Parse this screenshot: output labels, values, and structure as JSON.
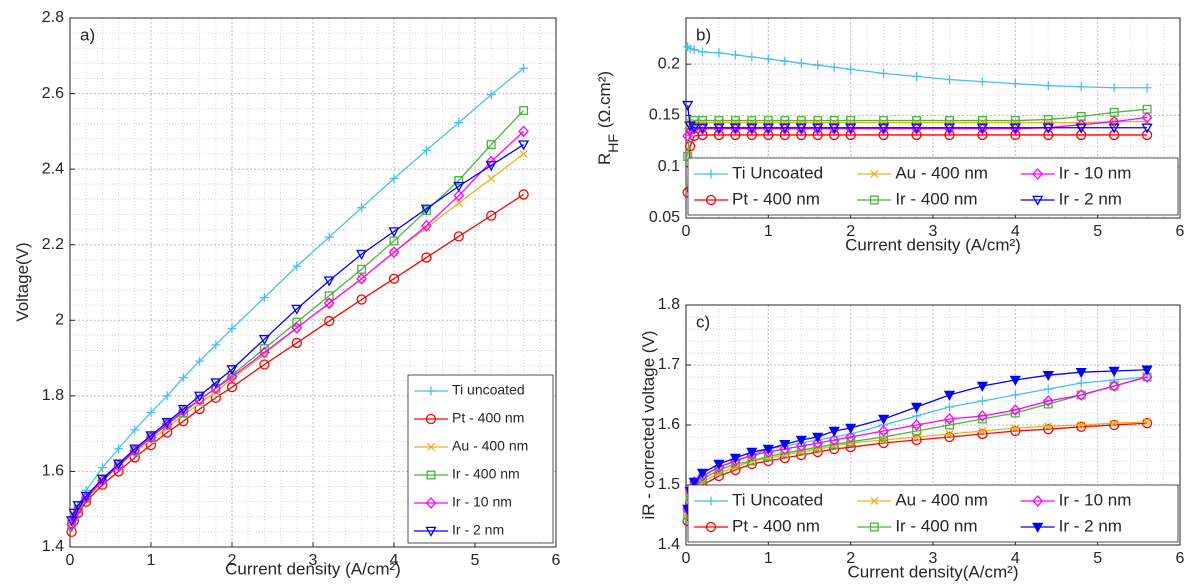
{
  "chart_data": [
    {
      "type": "line",
      "panel_label": "a)",
      "xlabel": "Current density (A/cm²)",
      "ylabel": "Voltage(V)",
      "x": [
        0.02,
        0.05,
        0.1,
        0.2,
        0.4,
        0.6,
        0.8,
        1.0,
        1.2,
        1.4,
        1.6,
        1.8,
        2.0,
        2.4,
        2.8,
        3.2,
        3.6,
        4.0,
        4.4,
        4.8,
        5.2,
        5.6
      ],
      "xlim": [
        0,
        6
      ],
      "xticks": [
        0,
        1,
        2,
        3,
        4,
        5,
        6
      ],
      "ylim": [
        1.4,
        2.8
      ],
      "yticks": [
        1.4,
        1.6,
        1.8,
        2,
        2.2,
        2.4,
        2.6,
        2.8
      ],
      "grid": true,
      "legend": "lower right",
      "legend_columns": 1,
      "series": [
        {
          "name": "Ti uncoated",
          "color": "#4DBEEE",
          "marker": "plus",
          "values": [
            1.47,
            1.49,
            1.51,
            1.55,
            1.61,
            1.66,
            1.71,
            1.756,
            1.8,
            1.848,
            1.892,
            1.935,
            1.978,
            2.06,
            2.143,
            2.22,
            2.298,
            2.375,
            2.45,
            2.523,
            2.597,
            2.667
          ]
        },
        {
          "name": "Pt - 400 nm",
          "color": "#FF0000",
          "marker": "circle",
          "values": [
            1.44,
            1.47,
            1.49,
            1.52,
            1.565,
            1.6,
            1.637,
            1.67,
            1.703,
            1.733,
            1.765,
            1.795,
            1.823,
            1.883,
            1.94,
            1.998,
            2.055,
            2.11,
            2.166,
            2.222,
            2.277,
            2.333
          ]
        },
        {
          "name": "Au - 400 nm",
          "color": "#EDB120",
          "marker": "x",
          "values": [
            1.46,
            1.48,
            1.5,
            1.525,
            1.575,
            1.615,
            1.65,
            1.685,
            1.715,
            1.75,
            1.78,
            1.81,
            1.845,
            1.91,
            1.98,
            2.045,
            2.11,
            2.18,
            2.245,
            2.31,
            2.375,
            2.44
          ]
        },
        {
          "name": "Ir - 400 nm",
          "color": "#4DB33D",
          "marker": "square",
          "values": [
            1.46,
            1.48,
            1.5,
            1.53,
            1.58,
            1.62,
            1.655,
            1.69,
            1.725,
            1.755,
            1.79,
            1.82,
            1.855,
            1.925,
            1.995,
            2.065,
            2.135,
            2.21,
            2.29,
            2.37,
            2.465,
            2.555
          ]
        },
        {
          "name": "Ir - 10 nm",
          "color": "#FF00FF",
          "marker": "diamond",
          "values": [
            1.46,
            1.48,
            1.5,
            1.53,
            1.575,
            1.615,
            1.655,
            1.69,
            1.725,
            1.76,
            1.79,
            1.82,
            1.85,
            1.915,
            1.98,
            2.045,
            2.11,
            2.18,
            2.25,
            2.33,
            2.42,
            2.5
          ]
        },
        {
          "name": "Ir - 2 nm",
          "color": "#0000FF",
          "marker": "triangle-down",
          "values": [
            1.47,
            1.49,
            1.51,
            1.535,
            1.58,
            1.62,
            1.66,
            1.695,
            1.73,
            1.765,
            1.8,
            1.835,
            1.87,
            1.95,
            2.03,
            2.105,
            2.175,
            2.235,
            2.295,
            2.355,
            2.41,
            2.465
          ]
        }
      ]
    },
    {
      "type": "line",
      "panel_label": "b)",
      "xlabel": "Current density (A/cm²)",
      "ylabel": "R",
      "ylabel_subscript": "HF",
      "ylabel_unit": "(Ω.cm²)",
      "x": [
        0.02,
        0.05,
        0.1,
        0.2,
        0.4,
        0.6,
        0.8,
        1.0,
        1.2,
        1.4,
        1.6,
        1.8,
        2.0,
        2.4,
        2.8,
        3.2,
        3.6,
        4.0,
        4.4,
        4.8,
        5.2,
        5.6
      ],
      "xlim": [
        0,
        6
      ],
      "xticks": [
        0,
        1,
        2,
        3,
        4,
        5,
        6
      ],
      "ylim": [
        0.05,
        0.245
      ],
      "yticks": [
        0.05,
        0.1,
        0.15,
        0.2
      ],
      "grid": true,
      "legend": "lower",
      "legend_columns": 3,
      "series": [
        {
          "name": "Ti Uncoated",
          "color": "#4DBEEE",
          "marker": "plus",
          "values": [
            0.217,
            0.215,
            0.214,
            0.212,
            0.211,
            0.209,
            0.207,
            0.205,
            0.203,
            0.201,
            0.199,
            0.197,
            0.195,
            0.191,
            0.188,
            0.185,
            0.183,
            0.181,
            0.179,
            0.178,
            0.177,
            0.177
          ]
        },
        {
          "name": "Pt - 400 nm",
          "color": "#FF0000",
          "marker": "circle",
          "values": [
            0.075,
            0.12,
            0.13,
            0.131,
            0.131,
            0.131,
            0.131,
            0.131,
            0.131,
            0.131,
            0.131,
            0.131,
            0.131,
            0.131,
            0.131,
            0.131,
            0.131,
            0.131,
            0.131,
            0.131,
            0.131,
            0.131
          ]
        },
        {
          "name": "Au - 400 nm",
          "color": "#EDB120",
          "marker": "x",
          "values": [
            0.14,
            0.143,
            0.143,
            0.143,
            0.143,
            0.143,
            0.143,
            0.143,
            0.143,
            0.143,
            0.143,
            0.143,
            0.143,
            0.143,
            0.143,
            0.143,
            0.143,
            0.143,
            0.143,
            0.143,
            0.144,
            0.144
          ]
        },
        {
          "name": "Ir - 400 nm",
          "color": "#4DB33D",
          "marker": "square",
          "values": [
            0.11,
            0.14,
            0.145,
            0.145,
            0.145,
            0.145,
            0.145,
            0.145,
            0.145,
            0.145,
            0.145,
            0.145,
            0.145,
            0.145,
            0.145,
            0.145,
            0.145,
            0.145,
            0.146,
            0.149,
            0.153,
            0.156
          ]
        },
        {
          "name": "Ir - 10 nm",
          "color": "#FF00FF",
          "marker": "diamond",
          "values": [
            0.13,
            0.135,
            0.137,
            0.137,
            0.137,
            0.137,
            0.137,
            0.137,
            0.137,
            0.137,
            0.137,
            0.137,
            0.137,
            0.137,
            0.137,
            0.137,
            0.137,
            0.137,
            0.138,
            0.141,
            0.144,
            0.148
          ]
        },
        {
          "name": "Ir - 2 nm",
          "color": "#0000FF",
          "marker": "triangle-down",
          "values": [
            0.16,
            0.14,
            0.138,
            0.138,
            0.138,
            0.138,
            0.138,
            0.138,
            0.138,
            0.138,
            0.138,
            0.138,
            0.138,
            0.138,
            0.138,
            0.138,
            0.138,
            0.138,
            0.138,
            0.138,
            0.138,
            0.138
          ]
        }
      ]
    },
    {
      "type": "line",
      "panel_label": "c)",
      "xlabel": "Current density(A/cm²)",
      "ylabel": "iR - corrected voltage (V)",
      "x": [
        0.02,
        0.05,
        0.1,
        0.2,
        0.4,
        0.6,
        0.8,
        1.0,
        1.2,
        1.4,
        1.6,
        1.8,
        2.0,
        2.4,
        2.8,
        3.2,
        3.6,
        4.0,
        4.4,
        4.8,
        5.2,
        5.6
      ],
      "xlim": [
        0,
        6
      ],
      "xticks": [
        0,
        1,
        2,
        3,
        4,
        5,
        6
      ],
      "ylim": [
        1.4,
        1.8
      ],
      "yticks": [
        1.4,
        1.5,
        1.6,
        1.7,
        1.8
      ],
      "grid": true,
      "legend": "lower",
      "legend_columns": 3,
      "series": [
        {
          "name": "Ti Uncoated",
          "color": "#4DBEEE",
          "marker": "plus",
          "values": [
            1.46,
            1.48,
            1.5,
            1.515,
            1.53,
            1.54,
            1.55,
            1.56,
            1.565,
            1.57,
            1.575,
            1.58,
            1.585,
            1.6,
            1.615,
            1.63,
            1.64,
            1.65,
            1.66,
            1.67,
            1.675,
            1.68
          ]
        },
        {
          "name": "Pt - 400 nm",
          "color": "#FF0000",
          "marker": "circle",
          "values": [
            1.44,
            1.47,
            1.49,
            1.5,
            1.515,
            1.525,
            1.535,
            1.54,
            1.545,
            1.55,
            1.555,
            1.56,
            1.563,
            1.57,
            1.575,
            1.58,
            1.585,
            1.59,
            1.593,
            1.597,
            1.6,
            1.603
          ]
        },
        {
          "name": "Au - 400 nm",
          "color": "#EDB120",
          "marker": "x",
          "values": [
            1.45,
            1.48,
            1.495,
            1.505,
            1.52,
            1.53,
            1.54,
            1.545,
            1.55,
            1.555,
            1.56,
            1.565,
            1.57,
            1.575,
            1.58,
            1.585,
            1.59,
            1.595,
            1.598,
            1.6,
            1.603,
            1.605
          ]
        },
        {
          "name": "Ir - 400 nm",
          "color": "#4DB33D",
          "marker": "square",
          "values": [
            1.45,
            1.48,
            1.495,
            1.51,
            1.525,
            1.535,
            1.54,
            1.548,
            1.553,
            1.558,
            1.563,
            1.568,
            1.572,
            1.58,
            1.59,
            1.6,
            1.61,
            1.62,
            1.635,
            1.65,
            1.665,
            1.68
          ]
        },
        {
          "name": "Ir - 10 nm",
          "color": "#FF00FF",
          "marker": "diamond",
          "values": [
            1.46,
            1.49,
            1.505,
            1.515,
            1.53,
            1.54,
            1.55,
            1.555,
            1.56,
            1.565,
            1.57,
            1.575,
            1.58,
            1.59,
            1.6,
            1.61,
            1.615,
            1.625,
            1.64,
            1.65,
            1.665,
            1.68
          ]
        },
        {
          "name": "Ir - 2 nm",
          "color": "#0000FF",
          "marker": "triangle-down-filled",
          "values": [
            1.46,
            1.49,
            1.505,
            1.52,
            1.535,
            1.545,
            1.555,
            1.56,
            1.568,
            1.575,
            1.58,
            1.59,
            1.595,
            1.61,
            1.63,
            1.65,
            1.665,
            1.675,
            1.683,
            1.688,
            1.69,
            1.692
          ]
        }
      ]
    }
  ]
}
